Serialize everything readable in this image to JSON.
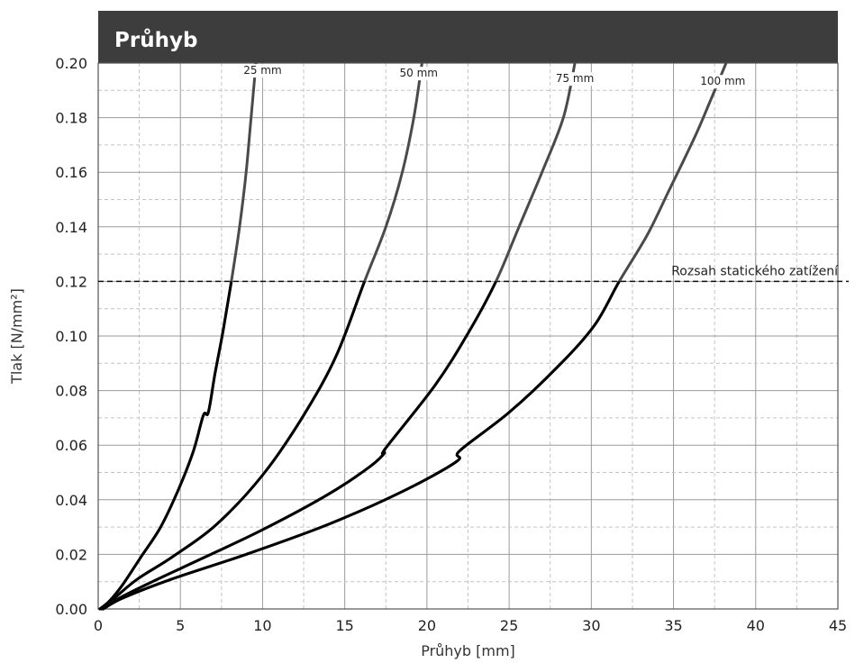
{
  "chart_data": {
    "type": "line",
    "title": "Průhyb",
    "xlabel": "Průhyb [mm]",
    "ylabel": "Tlak [N/mm²]",
    "xlim": [
      0,
      45
    ],
    "ylim": [
      0,
      0.2
    ],
    "x_ticks": [
      "0",
      "5",
      "10",
      "15",
      "20",
      "25",
      "30",
      "35",
      "40",
      "45"
    ],
    "y_ticks": [
      "0.00",
      "0.02",
      "0.04",
      "0.06",
      "0.08",
      "0.10",
      "0.12",
      "0.14",
      "0.16",
      "0.18",
      "0.20"
    ],
    "grid": true,
    "legend": "none",
    "reference_line": {
      "y": 0.12,
      "label": "Rozsah statického zatížení"
    },
    "series": [
      {
        "name": "25 mm",
        "points": [
          [
            0.1,
            0
          ],
          [
            0.7,
            0.003
          ],
          [
            1.5,
            0.009
          ],
          [
            2.6,
            0.019
          ],
          [
            3.8,
            0.03
          ],
          [
            4.9,
            0.044
          ],
          [
            5.8,
            0.058
          ],
          [
            6.4,
            0.071
          ],
          [
            6.7,
            0.072
          ],
          [
            7.1,
            0.086
          ],
          [
            7.6,
            0.102
          ],
          [
            8.1,
            0.12
          ],
          [
            8.6,
            0.14
          ],
          [
            9.0,
            0.16
          ],
          [
            9.3,
            0.18
          ],
          [
            9.6,
            0.2
          ]
        ],
        "label_point": [
          10,
          0.196
        ]
      },
      {
        "name": "50 mm",
        "points": [
          [
            0.2,
            0
          ],
          [
            1.0,
            0.004
          ],
          [
            2.4,
            0.011
          ],
          [
            4.5,
            0.019
          ],
          [
            7.2,
            0.031
          ],
          [
            10.0,
            0.049
          ],
          [
            12.5,
            0.071
          ],
          [
            14.5,
            0.093
          ],
          [
            16.2,
            0.12
          ],
          [
            17.5,
            0.14
          ],
          [
            18.5,
            0.16
          ],
          [
            19.2,
            0.18
          ],
          [
            19.7,
            0.2
          ]
        ],
        "label_point": [
          19.5,
          0.195
        ]
      },
      {
        "name": "75 mm",
        "points": [
          [
            0.3,
            0
          ],
          [
            1.3,
            0.004
          ],
          [
            3.3,
            0.01
          ],
          [
            6.5,
            0.019
          ],
          [
            10.0,
            0.029
          ],
          [
            14.0,
            0.042
          ],
          [
            16.5,
            0.052
          ],
          [
            17.4,
            0.057
          ],
          [
            17.5,
            0.059
          ],
          [
            20.5,
            0.082
          ],
          [
            22.5,
            0.101
          ],
          [
            24.2,
            0.12
          ],
          [
            25.6,
            0.14
          ],
          [
            27.0,
            0.16
          ],
          [
            28.3,
            0.18
          ],
          [
            29.0,
            0.2
          ]
        ],
        "label_point": [
          29,
          0.193
        ]
      },
      {
        "name": "100 mm",
        "points": [
          [
            0.3,
            0
          ],
          [
            1.5,
            0.004
          ],
          [
            4.5,
            0.011
          ],
          [
            9.0,
            0.02
          ],
          [
            14.0,
            0.031
          ],
          [
            18.5,
            0.043
          ],
          [
            21.8,
            0.054
          ],
          [
            22.0,
            0.058
          ],
          [
            25.0,
            0.072
          ],
          [
            28.0,
            0.089
          ],
          [
            30.2,
            0.104
          ],
          [
            31.7,
            0.12
          ],
          [
            33.4,
            0.137
          ],
          [
            34.7,
            0.153
          ],
          [
            36.3,
            0.173
          ],
          [
            37.3,
            0.187
          ],
          [
            38.2,
            0.2
          ]
        ],
        "label_point": [
          38,
          0.192
        ]
      }
    ]
  }
}
